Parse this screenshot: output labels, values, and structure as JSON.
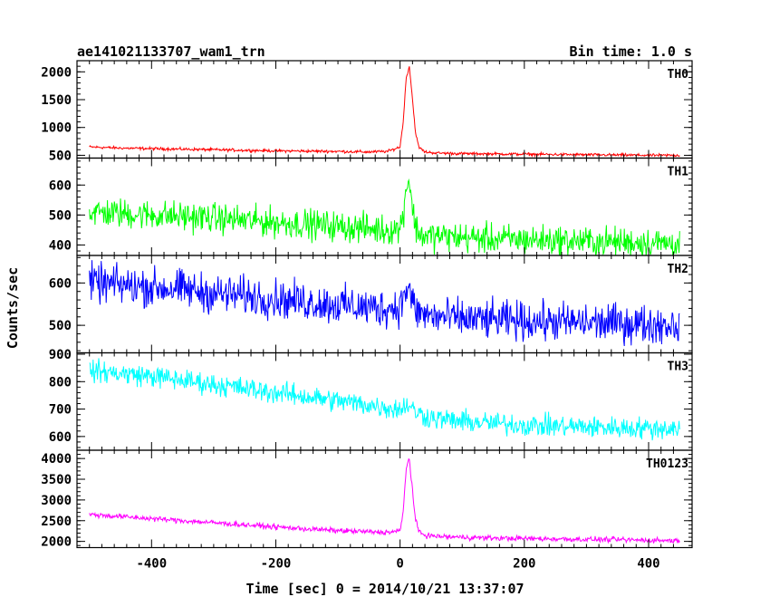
{
  "chart_data": {
    "type": "line",
    "title": "ae141021133707_wam1_trn",
    "bin_label": "Bin time: 1.0 s",
    "xlabel": "Time [sec] 0 = 2014/10/21 13:37:07",
    "ylabel": "Counts/sec",
    "xlim": [
      -520,
      470
    ],
    "x_ticks": [
      "-400",
      "-200",
      "0",
      "200",
      "400"
    ],
    "x_tick_values": [
      -400,
      -200,
      0,
      200,
      400
    ],
    "grid": false,
    "x": [
      -500,
      -450,
      -400,
      -350,
      -300,
      -250,
      -200,
      -150,
      -100,
      -50,
      -20,
      0,
      5,
      10,
      15,
      20,
      25,
      30,
      40,
      60,
      100,
      150,
      200,
      250,
      300,
      350,
      400,
      450
    ],
    "series": [
      {
        "name": "TH0",
        "color": "#ff0000",
        "ylim": [
          450,
          2200
        ],
        "y_ticks": [
          "500",
          "1000",
          "1500",
          "2000"
        ],
        "y_tick_values": [
          500,
          1000,
          1500,
          2000
        ],
        "noise": 18,
        "values": [
          650,
          630,
          620,
          610,
          600,
          590,
          580,
          575,
          570,
          560,
          570,
          650,
          1100,
          1900,
          2100,
          1500,
          900,
          650,
          560,
          540,
          530,
          525,
          520,
          515,
          510,
          505,
          500,
          500
        ]
      },
      {
        "name": "TH1",
        "color": "#00ff00",
        "ylim": [
          365,
          690
        ],
        "y_ticks": [
          "400",
          "500",
          "600"
        ],
        "y_tick_values": [
          400,
          500,
          600
        ],
        "noise": 35,
        "values": [
          510,
          505,
          500,
          495,
          490,
          482,
          475,
          470,
          462,
          455,
          450,
          455,
          500,
          600,
          620,
          520,
          460,
          440,
          430,
          430,
          425,
          420,
          418,
          415,
          412,
          410,
          408,
          405
        ]
      },
      {
        "name": "TH2",
        "color": "#0000ff",
        "ylim": [
          435,
          665
        ],
        "y_ticks": [
          "500",
          "600"
        ],
        "y_tick_values": [
          500,
          600
        ],
        "noise": 32,
        "values": [
          600,
          595,
          590,
          585,
          575,
          570,
          562,
          555,
          548,
          542,
          540,
          545,
          560,
          590,
          580,
          555,
          535,
          530,
          525,
          520,
          515,
          512,
          510,
          508,
          506,
          505,
          503,
          502
        ]
      },
      {
        "name": "TH3",
        "color": "#00ffff",
        "ylim": [
          550,
          905
        ],
        "y_ticks": [
          "600",
          "700",
          "800",
          "900"
        ],
        "y_tick_values": [
          600,
          700,
          800,
          900
        ],
        "noise": 28,
        "values": [
          840,
          830,
          820,
          805,
          790,
          775,
          760,
          745,
          730,
          715,
          705,
          700,
          705,
          720,
          712,
          700,
          690,
          685,
          675,
          665,
          655,
          648,
          642,
          638,
          635,
          632,
          630,
          630
        ]
      },
      {
        "name": "TH0123",
        "color": "#ff00ff",
        "ylim": [
          1850,
          4200
        ],
        "y_ticks": [
          "2000",
          "2500",
          "3000",
          "3500",
          "4000"
        ],
        "y_tick_values": [
          2000,
          2500,
          3000,
          3500,
          4000
        ],
        "noise": 45,
        "values": [
          2650,
          2600,
          2550,
          2500,
          2450,
          2400,
          2350,
          2300,
          2260,
          2230,
          2220,
          2250,
          2700,
          3800,
          4000,
          3200,
          2500,
          2250,
          2150,
          2120,
          2100,
          2080,
          2070,
          2060,
          2050,
          2040,
          2030,
          2020
        ]
      }
    ]
  }
}
